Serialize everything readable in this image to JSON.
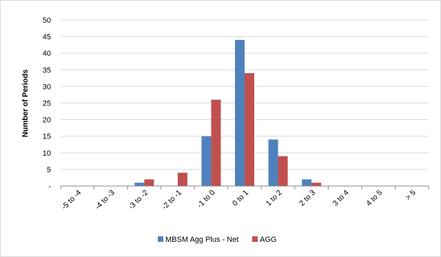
{
  "chart_data": {
    "type": "bar",
    "title": "",
    "xlabel": "",
    "ylabel": "Number of Periods",
    "ylim": [
      0,
      50
    ],
    "yticks": [
      0,
      5,
      10,
      15,
      20,
      25,
      30,
      35,
      40,
      45,
      50
    ],
    "ytick_labels": [
      "-",
      "5",
      "10",
      "15",
      "20",
      "25",
      "30",
      "35",
      "40",
      "45",
      "50"
    ],
    "categories": [
      "-5 to -4",
      "-4 to -3",
      "-3 to -2",
      "-2 to -1",
      "-1 to 0",
      "0 to 1",
      "1 to 2",
      "2 to 3",
      "3 to 4",
      "4 to 5",
      "> 5"
    ],
    "series": [
      {
        "name": "MBSM Agg Plus - Net",
        "color": "#4f81bd",
        "values": [
          0,
          0,
          1,
          0,
          15,
          44,
          14,
          2,
          0,
          0,
          0
        ]
      },
      {
        "name": "AGG",
        "color": "#c0504d",
        "values": [
          0,
          0,
          2,
          4,
          26,
          34,
          9,
          1,
          0,
          0,
          0
        ]
      }
    ],
    "grid": true,
    "legend_position": "bottom"
  }
}
